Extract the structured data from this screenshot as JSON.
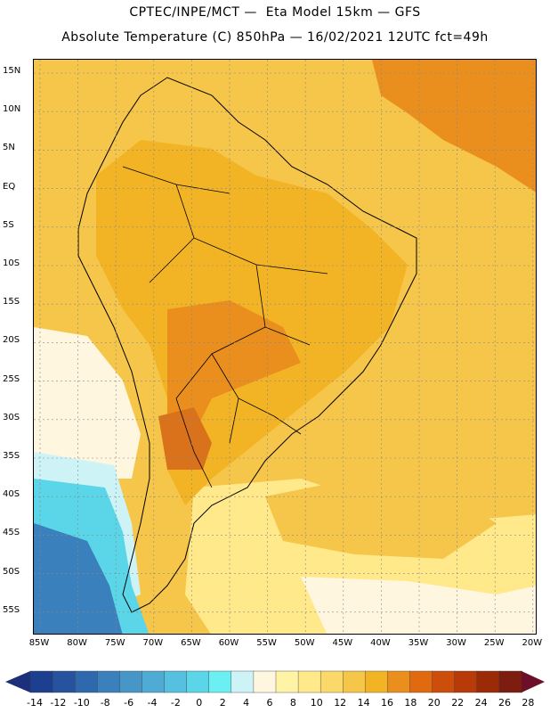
{
  "header": {
    "line1": "CPTEC/INPE/MCT —  Eta Model 15km — GFS",
    "line2": "Absolute Temperature (C) 850hPa — 16/02/2021 12UTC fct=49h"
  },
  "axes": {
    "lat_labels": [
      "15N",
      "10N",
      "5N",
      "EQ",
      "5S",
      "10S",
      "15S",
      "20S",
      "25S",
      "30S",
      "35S",
      "40S",
      "45S",
      "50S",
      "55S"
    ],
    "lon_labels": [
      "85W",
      "80W",
      "75W",
      "70W",
      "65W",
      "60W",
      "55W",
      "50W",
      "45W",
      "40W",
      "35W",
      "30W",
      "25W",
      "20W"
    ]
  },
  "colorbar": {
    "labels": [
      "-14",
      "-12",
      "-10",
      "-8",
      "-6",
      "-4",
      "-2",
      "0",
      "2",
      "4",
      "6",
      "8",
      "10",
      "12",
      "14",
      "16",
      "18",
      "20",
      "22",
      "24",
      "26",
      "28"
    ],
    "colors": [
      "#1d3f8f",
      "#27539e",
      "#2f69ad",
      "#3a80bc",
      "#4696c8",
      "#50abd4",
      "#55c0df",
      "#5ad6e8",
      "#6beff2",
      "#cdf3f7",
      "#fff6e0",
      "#fff3a6",
      "#ffe98a",
      "#fbd86a",
      "#f6c64a",
      "#f2b424",
      "#ea8f1d",
      "#e16a10",
      "#cd4e0a",
      "#b83a08",
      "#9b2a07",
      "#7c1d10"
    ],
    "low_arrow_color": "#1b2f7a",
    "high_arrow_color": "#6c0f28"
  },
  "map": {
    "palette": {
      "ocean_cold": "#5ad6e8",
      "ocean_cool": "#cdf3f7",
      "ocean_mild": "#fff6e0",
      "ocean_warm": "#ffe98a",
      "warm": "#f6c64a",
      "hot": "#f2b424",
      "hotter": "#ea8f1d",
      "hottest": "#d9721a",
      "deep_cold": "#3a80bc",
      "border": "#000000",
      "grid": "#888888"
    }
  }
}
